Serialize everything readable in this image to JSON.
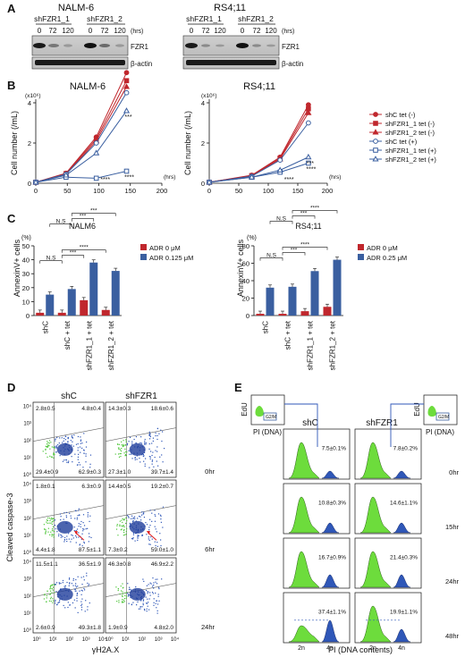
{
  "panels": {
    "A": "A",
    "B": "B",
    "C": "C",
    "D": "D",
    "E": "E"
  },
  "panel_a": {
    "blots": [
      {
        "title": "NALM-6",
        "groups": [
          "shFZR1_1",
          "shFZR1_2"
        ],
        "times": [
          "0",
          "72",
          "120",
          "0",
          "72",
          "120"
        ],
        "hrs": "(hrs)",
        "bands": [
          "FZR1",
          "β-actin"
        ]
      },
      {
        "title": "RS4;11",
        "groups": [
          "shFZR1_1",
          "shFZR1_2"
        ],
        "times": [
          "0",
          "72",
          "120",
          "0",
          "72",
          "120"
        ],
        "hrs": "(hrs)",
        "bands": [
          "FZR1",
          "β-actin"
        ]
      }
    ]
  },
  "panel_b": {
    "legend": [
      "shC tet (-)",
      "shFZR1_1 tet (-)",
      "shFZR1_2 tet (-)",
      "shC tet (+)",
      "shFZR1_1 tet (+)",
      "shFZR1_2 tet (+)"
    ],
    "colors": {
      "minus": "#c0272d",
      "plus": "#3a5fa0"
    }
  },
  "panel_c": {
    "ytitle": "AnnexinV+ cells",
    "unit": "(%)",
    "categories": [
      "shC",
      "shC + tet",
      "shFZR1_1 + tet",
      "shFZR1_2 + tet"
    ],
    "legend_left": [
      "ADR 0 μM",
      "ADR 0.125 μM"
    ],
    "legend_right": [
      "ADR 0 μM",
      "ADR 0.25 μM"
    ]
  },
  "chart_data": [
    {
      "type": "line",
      "title": "NALM-6",
      "ylabel": "Cell number (/mL)",
      "y_multiplier": "(x10⁶)",
      "xunit": "(hrs)",
      "xlim": [
        0,
        200
      ],
      "ylim": [
        0,
        4
      ],
      "xticks": [
        "0",
        "50",
        "100",
        "150",
        "200"
      ],
      "yticks": [
        "0",
        "2",
        "4"
      ],
      "x": [
        0,
        48,
        96,
        144
      ],
      "series": [
        {
          "name": "shC tet (-)",
          "values": [
            0.05,
            0.5,
            2.3,
            5.5
          ]
        },
        {
          "name": "shFZR1_1 tet (-)",
          "values": [
            0.05,
            0.48,
            2.2,
            5.1
          ]
        },
        {
          "name": "shFZR1_2 tet (-)",
          "values": [
            0.05,
            0.45,
            2.1,
            4.8
          ]
        },
        {
          "name": "shC tet (+)",
          "values": [
            0.05,
            0.45,
            2.0,
            4.5
          ]
        },
        {
          "name": "shFZR1_1 tet (+)",
          "values": [
            0.05,
            0.3,
            0.25,
            0.6
          ]
        },
        {
          "name": "shFZR1_2 tet (+)",
          "values": [
            0.05,
            0.4,
            1.5,
            3.6
          ]
        }
      ],
      "annotations": [
        "***",
        "****",
        "****"
      ]
    },
    {
      "type": "line",
      "title": "RS4;11",
      "ylabel": "Cell number (/mL)",
      "y_multiplier": "(x10⁶)",
      "xunit": "(hrs)",
      "xlim": [
        0,
        200
      ],
      "ylim": [
        0,
        4
      ],
      "xticks": [
        "0",
        "50",
        "100",
        "150",
        "200"
      ],
      "yticks": [
        "0",
        "2",
        "4"
      ],
      "x": [
        0,
        72,
        120,
        168
      ],
      "series": [
        {
          "name": "shC tet (-)",
          "values": [
            0.05,
            0.4,
            1.3,
            3.9
          ]
        },
        {
          "name": "shFZR1_1 tet (-)",
          "values": [
            0.05,
            0.38,
            1.25,
            3.7
          ]
        },
        {
          "name": "shFZR1_2 tet (-)",
          "values": [
            0.05,
            0.36,
            1.2,
            3.5
          ]
        },
        {
          "name": "shC tet (+)",
          "values": [
            0.05,
            0.35,
            1.15,
            3.0
          ]
        },
        {
          "name": "shFZR1_1 tet (+)",
          "values": [
            0.05,
            0.3,
            0.55,
            1.0
          ]
        },
        {
          "name": "shFZR1_2 tet (+)",
          "values": [
            0.05,
            0.3,
            0.65,
            1.3
          ]
        }
      ],
      "annotations": [
        "***",
        "****",
        "****"
      ]
    },
    {
      "type": "bar",
      "title": "NALM6",
      "ylabel": "AnnexinV+ cells",
      "ylim": [
        0,
        50
      ],
      "yticks": [
        "0",
        "10",
        "20",
        "30",
        "40",
        "50"
      ],
      "categories": [
        "shC",
        "shC + tet",
        "shFZR1_1 + tet",
        "shFZR1_2 + tet"
      ],
      "series": [
        {
          "name": "ADR 0 μM",
          "values": [
            2,
            2,
            11,
            4
          ]
        },
        {
          "name": "ADR 0.125 μM",
          "values": [
            15,
            19,
            38,
            32
          ]
        }
      ],
      "significance": [
        "N.S",
        "***",
        "****",
        "N.S",
        "***",
        "***"
      ]
    },
    {
      "type": "bar",
      "title": "RS4;11",
      "ylabel": "AnnexinV+ cells",
      "ylim": [
        0,
        80
      ],
      "yticks": [
        "0",
        "20",
        "40",
        "60",
        "80"
      ],
      "categories": [
        "shC",
        "shC + tet",
        "shFZR1_1 + tet",
        "shFZR1_2 + tet"
      ],
      "series": [
        {
          "name": "ADR 0 μM",
          "values": [
            2,
            2,
            5,
            10
          ]
        },
        {
          "name": "ADR 0.25 μM",
          "values": [
            32,
            33,
            51,
            64
          ]
        }
      ],
      "significance": [
        "N.S",
        "***",
        "****",
        "N.S",
        "***",
        "****"
      ]
    }
  ],
  "panel_d": {
    "col_titles": [
      "shC",
      "shFZR1"
    ],
    "ylabel": "Cleaved caspase-3",
    "xlabel": "γH2A.X",
    "axis_ticks": [
      "10⁰",
      "10¹",
      "10²",
      "10³",
      "10⁴"
    ],
    "times": [
      "0hr",
      "6hr",
      "24hr"
    ],
    "quadrants": [
      {
        "shc": {
          "tl": "2.8±0.5",
          "tr": "4.8±0.4",
          "bl": "29.4±0.9",
          "br": "62.9±0.3"
        },
        "shfzr1": {
          "tl": "14.3±0.3",
          "tr": "18.6±0.6",
          "bl": "27.3±1.0",
          "br": "39.7±1.4"
        }
      },
      {
        "shc": {
          "tl": "1.8±0.1",
          "tr": "6.3±0.9",
          "bl": "4.4±1.8",
          "br": "87.5±1.1"
        },
        "shfzr1": {
          "tl": "14.4±0.5",
          "tr": "19.2±0.7",
          "bl": "7.3±0.2",
          "br": "59.0±1.0"
        }
      },
      {
        "shc": {
          "tl": "11.5±1.1",
          "tr": "36.5±1.9",
          "bl": "2.6±0.9",
          "br": "49.3±1.8"
        },
        "shfzr1": {
          "tl": "46.3±0.8",
          "tr": "46.9±2.2",
          "bl": "1.9±0.9",
          "br": "4.8±2.0"
        }
      }
    ]
  },
  "panel_e": {
    "col_titles": [
      "shC",
      "shFZR1"
    ],
    "inset_ylabel": "EdU",
    "inset_xlabel": "PI (DNA)",
    "gate_label": "G2/M",
    "xlabel": "PI (DNA contents)",
    "xticks": [
      "2n",
      "4n"
    ],
    "times": [
      "0hr",
      "15hr",
      "24hr",
      "48hr"
    ],
    "values": [
      {
        "shc": "7.5±0.1%",
        "shfzr1": "7.8±0.2%"
      },
      {
        "shc": "10.8±0.3%",
        "shfzr1": "14.6±1.1%"
      },
      {
        "shc": "16.7±0.9%",
        "shfzr1": "21.4±0.3%"
      },
      {
        "shc": "37.4±1.1%",
        "shfzr1": "19.9±1.1%"
      }
    ]
  }
}
